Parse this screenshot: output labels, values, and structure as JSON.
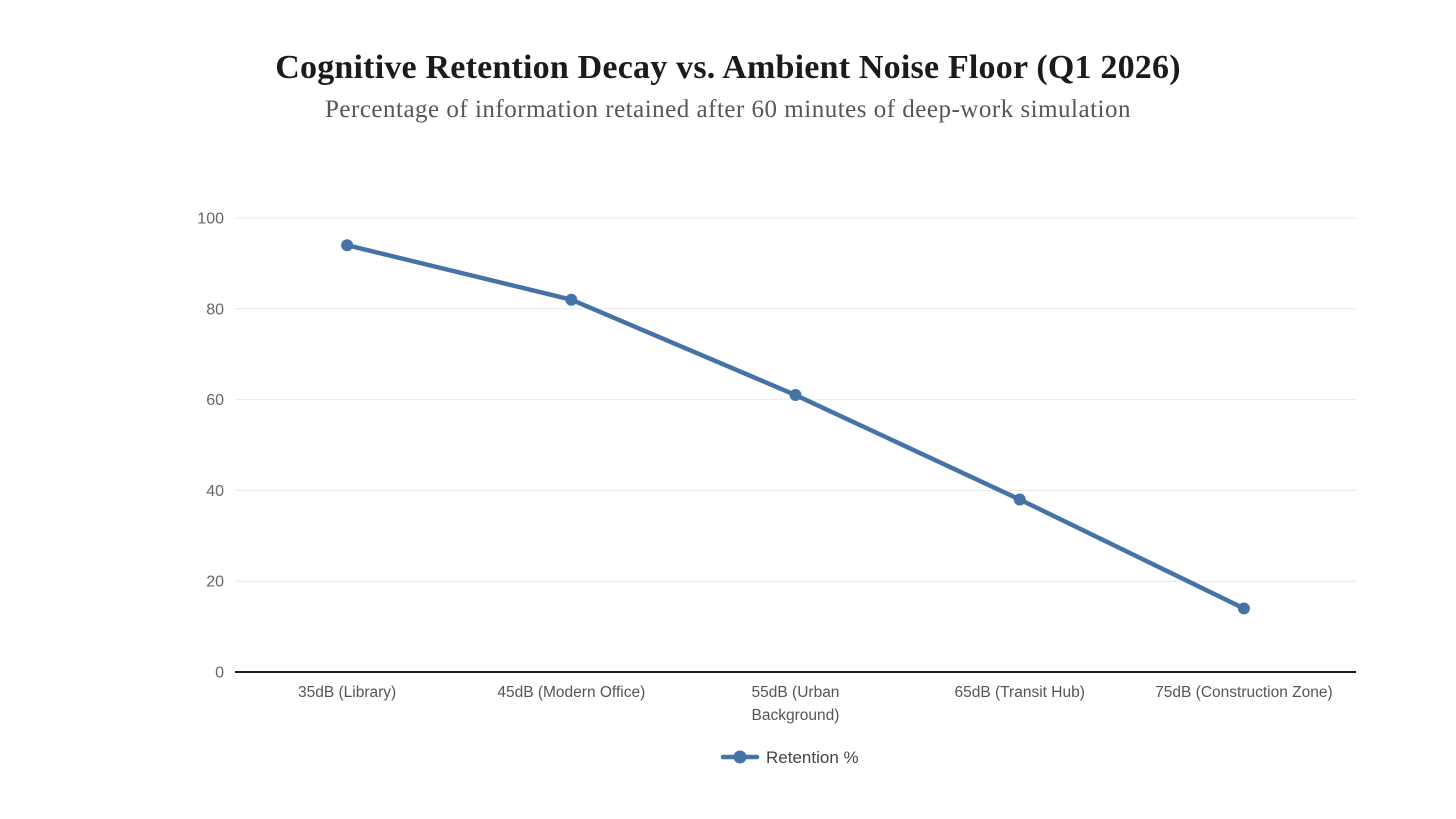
{
  "header": {
    "title": "Cognitive Retention Decay vs. Ambient Noise Floor (Q1 2026)",
    "subtitle": "Percentage of information retained after 60 minutes of deep-work simulation"
  },
  "chart_data": {
    "type": "line",
    "title": "Cognitive Retention Decay vs. Ambient Noise Floor (Q1 2026)",
    "subtitle": "Percentage of information retained after 60 minutes of deep-work simulation",
    "categories": [
      "35dB (Library)",
      "45dB (Modern Office)",
      "55dB (Urban Background)",
      "65dB (Transit Hub)",
      "75dB (Construction Zone)"
    ],
    "x_tick_lines": [
      [
        "35dB (Library)"
      ],
      [
        "45dB (Modern Office)"
      ],
      [
        "55dB (Urban",
        "Background)"
      ],
      [
        "65dB (Transit Hub)"
      ],
      [
        "75dB (Construction Zone)"
      ]
    ],
    "series": [
      {
        "name": "Retention %",
        "values": [
          94,
          82,
          61,
          38,
          14
        ]
      }
    ],
    "xlabel": "",
    "ylabel": "",
    "ylim": [
      0,
      100
    ],
    "y_ticks": [
      0,
      20,
      40,
      60,
      80,
      100
    ],
    "grid": true,
    "legend_position": "bottom",
    "colors": {
      "line": "#4673a6",
      "marker": "#4673a6",
      "grid": "#e8e8e8",
      "axis": "#1a1a1a",
      "y_tick_text": "#666666",
      "x_tick_text": "#555555",
      "legend_text": "#444444"
    }
  }
}
